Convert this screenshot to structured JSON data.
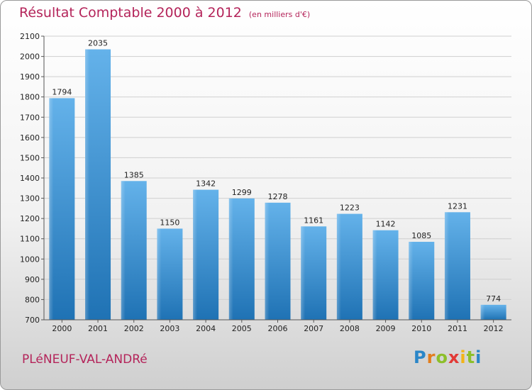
{
  "header": {
    "title": "Résultat Comptable 2000 à 2012",
    "unit": "(en milliers d'€)"
  },
  "footer": {
    "city": "PLéNEUF-VAL-ANDRé",
    "logo_letters": [
      "P",
      "r",
      "o",
      "x",
      "i",
      "t",
      "i"
    ],
    "logo_colors": [
      "#2a86c8",
      "#e27d1d",
      "#8dbf2a",
      "#e23a36",
      "#f2b418",
      "#8cbf2a",
      "#2a86c8"
    ]
  },
  "colors": {
    "title": "#b4245a",
    "bar_light": "#64b2ea",
    "bar_dark": "#1f72b4"
  },
  "chart_data": {
    "type": "bar",
    "title": "Résultat Comptable 2000 à 2012",
    "categories": [
      "2000",
      "2001",
      "2002",
      "2003",
      "2004",
      "2005",
      "2006",
      "2007",
      "2008",
      "2009",
      "2010",
      "2011",
      "2012"
    ],
    "values": [
      1794,
      2035,
      1385,
      1150,
      1342,
      1299,
      1278,
      1161,
      1223,
      1142,
      1085,
      1231,
      774
    ],
    "ylim": [
      700,
      2100
    ],
    "yticks": [
      700,
      800,
      900,
      1000,
      1100,
      1200,
      1300,
      1400,
      1500,
      1600,
      1700,
      1800,
      1900,
      2000,
      2100
    ],
    "grid": true,
    "xlabel": "",
    "ylabel": ""
  }
}
